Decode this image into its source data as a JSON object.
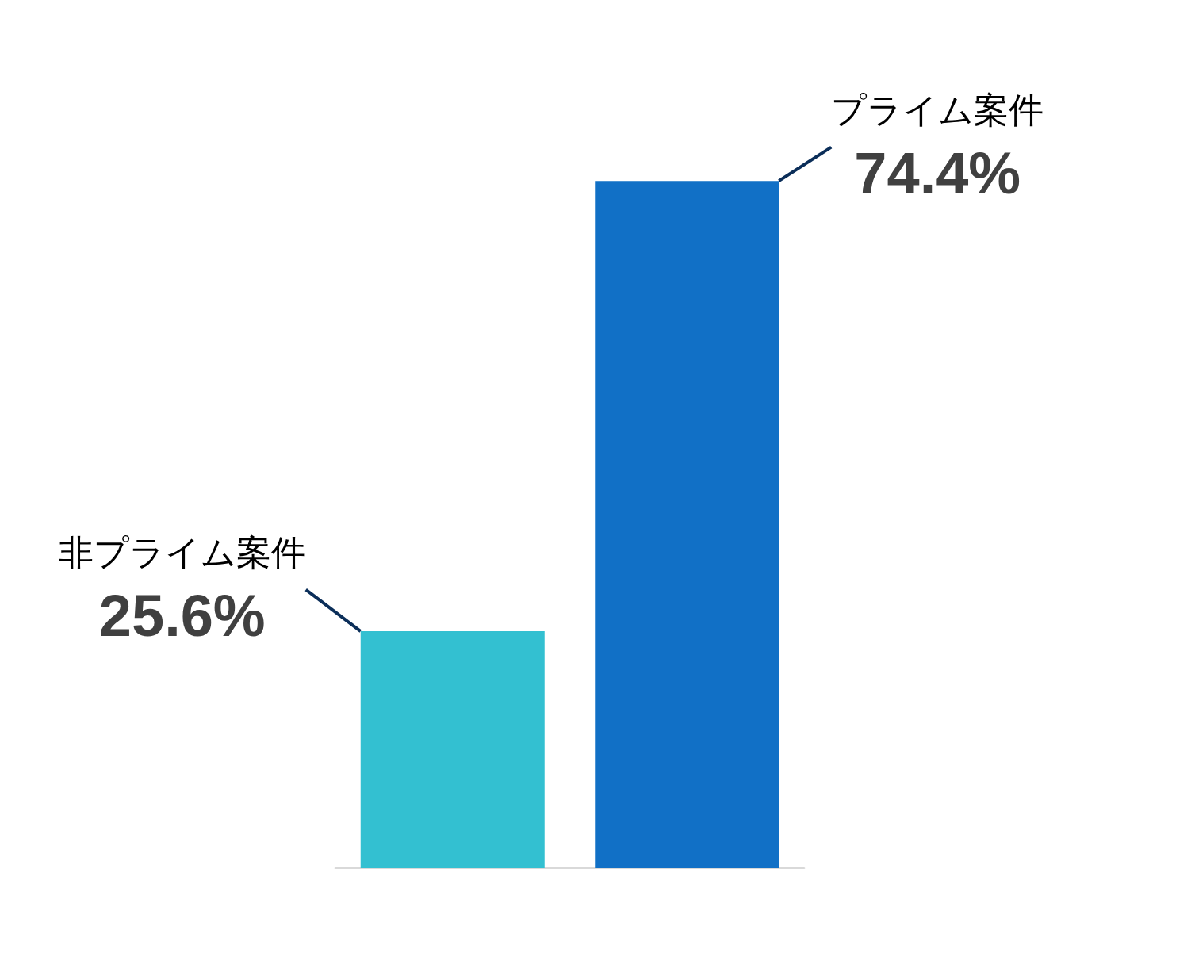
{
  "chart_data": {
    "type": "bar",
    "categories": [
      null,
      null
    ],
    "annotations": [
      "非プライム案件",
      "プライム案件"
    ],
    "values": [
      25.6,
      74.4
    ],
    "value_labels": [
      "25.6%",
      "74.4%"
    ],
    "colors": [
      "#33c0d1",
      "#1170c6"
    ],
    "tick_labels": false
  }
}
